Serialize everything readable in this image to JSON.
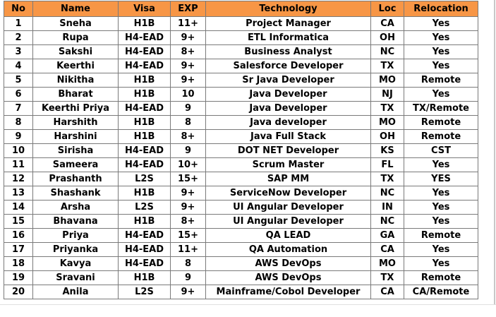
{
  "columns": [
    "No",
    "Name",
    "Visa",
    "EXP",
    "Technology",
    "Loc",
    "Relocation"
  ],
  "rows": [
    [
      "1",
      "Sneha",
      "H1B",
      "11+",
      "Project Manager",
      "CA",
      "Yes"
    ],
    [
      "2",
      "Rupa",
      "H4-EAD",
      "9+",
      "ETL Informatica",
      "OH",
      "Yes"
    ],
    [
      "3",
      "Sakshi",
      "H4-EAD",
      "8+",
      "Business Analyst",
      "NC",
      "Yes"
    ],
    [
      "4",
      "Keerthi",
      "H4-EAD",
      "9+",
      "Salesforce Developer",
      "TX",
      "Yes"
    ],
    [
      "5",
      "Nikitha",
      "H1B",
      "9+",
      "Sr Java Developer",
      "MO",
      "Remote"
    ],
    [
      "6",
      "Bharat",
      "H1B",
      "10",
      "Java Developer",
      "NJ",
      "Yes"
    ],
    [
      "7",
      "Keerthi Priya",
      "H4-EAD",
      "9",
      "Java Developer",
      "TX",
      "TX/Remote"
    ],
    [
      "8",
      "Harshith",
      "H1B",
      "8",
      "Java developer",
      "MO",
      "Remote"
    ],
    [
      "9",
      "Harshini",
      "H1B",
      "8+",
      "Java Full Stack",
      "OH",
      "Remote"
    ],
    [
      "10",
      "Sirisha",
      "H4-EAD",
      "9",
      "DOT NET Developer",
      "KS",
      "CST"
    ],
    [
      "11",
      "Sameera",
      "H4-EAD",
      "10+",
      "Scrum Master",
      "FL",
      "Yes"
    ],
    [
      "12",
      "Prashanth",
      "L2S",
      "15+",
      "SAP MM",
      "TX",
      "YES"
    ],
    [
      "13",
      "Shashank",
      "H1B",
      "9+",
      "ServiceNow Developer",
      "NC",
      "Yes"
    ],
    [
      "14",
      "Arsha",
      "L2S",
      "9+",
      "UI Angular Developer",
      "IN",
      "Yes"
    ],
    [
      "15",
      "Bhavana",
      "H1B",
      "8+",
      "UI Angular Developer",
      "NC",
      "Yes"
    ],
    [
      "16",
      "Priya",
      "H4-EAD",
      "15+",
      "QA LEAD",
      "GA",
      "Remote"
    ],
    [
      "17",
      "Priyanka",
      "H4-EAD",
      "11+",
      "QA Automation",
      "CA",
      "Yes"
    ],
    [
      "18",
      "Kavya",
      "H4-EAD",
      "8",
      "AWS DevOps",
      "MO",
      "Yes"
    ],
    [
      "19",
      "Sravani",
      "H1B",
      "9",
      "AWS DevOps",
      "TX",
      "Remote"
    ],
    [
      "20",
      "Anila",
      "L2S",
      "9+",
      "Mainframe/Cobol Developer",
      "CA",
      "CA/Remote"
    ]
  ],
  "colors": {
    "header_bg": "#f79646",
    "border": "#7a7a7a",
    "text": "#000000"
  }
}
